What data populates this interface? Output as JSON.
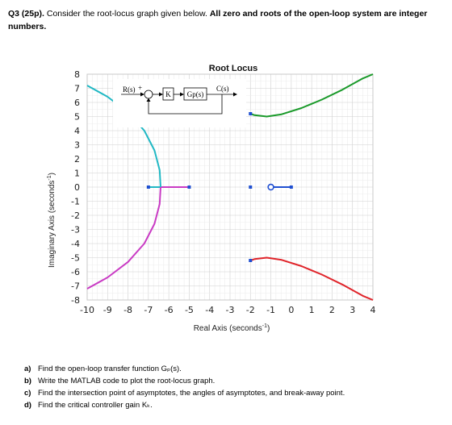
{
  "question": {
    "number": "Q3 (25p).",
    "intro": "Consider the root-locus graph given below.",
    "emphasis": "All zero and roots of the open-loop system are integer numbers."
  },
  "plot": {
    "title": "Root Locus",
    "y_axis_label": "Imaginary Axis (seconds",
    "x_axis_label": "Real Axis (seconds",
    "axis_unit_exponent": "-1",
    "axis_label_close": ")",
    "y_ticks": [
      "8",
      "7",
      "6",
      "5",
      "4",
      "3",
      "2",
      "1",
      "0",
      "-1",
      "-2",
      "-3",
      "-4",
      "-5",
      "-6",
      "-7",
      "-8"
    ],
    "x_ticks": [
      "-10",
      "-9",
      "-8",
      "-7",
      "-6",
      "-5",
      "-4",
      "-3",
      "-2",
      "-1",
      "0",
      "1",
      "2",
      "3",
      "4"
    ]
  },
  "block_diagram": {
    "input_label": "R(s)",
    "sum_sign": "+",
    "gain_label": "K",
    "plant_label": "Gp(s)",
    "output_label": "C(s)"
  },
  "chart_data": {
    "type": "line",
    "title": "Root Locus",
    "xlabel": "Real Axis (seconds^-1)",
    "ylabel": "Imaginary Axis (seconds^-1)",
    "xlim": [
      -10,
      4
    ],
    "ylim": [
      -8,
      8
    ],
    "grid": true,
    "poles": [
      -7,
      -5,
      -2,
      0
    ],
    "zeros": [
      -1
    ],
    "colors": {
      "cyan": "#21b8c4",
      "magenta": "#c93bc4",
      "green": "#1a9a2a",
      "red": "#e0242a",
      "blue": "#1f4fd1"
    },
    "series": [
      {
        "color": "cyan",
        "x": [
          -7,
          -6.4
        ],
        "y": [
          0,
          0
        ]
      },
      {
        "color": "magenta",
        "x": [
          -5,
          -6.4
        ],
        "y": [
          0,
          0
        ]
      },
      {
        "color": "cyan",
        "x": [
          -6.4,
          -6.45,
          -6.7,
          -7.2,
          -8.0,
          -9.0,
          -10.0
        ],
        "y": [
          0,
          1.2,
          2.6,
          4.0,
          5.3,
          6.4,
          7.2
        ]
      },
      {
        "color": "magenta",
        "x": [
          -6.4,
          -6.45,
          -6.7,
          -7.2,
          -8.0,
          -9.0,
          -10.0
        ],
        "y": [
          0,
          -1.2,
          -2.6,
          -4.0,
          -5.3,
          -6.4,
          -7.2
        ]
      },
      {
        "color": "blue",
        "x": [
          0,
          -1
        ],
        "y": [
          0,
          0
        ]
      },
      {
        "color": "green",
        "x": [
          -2,
          -1.8,
          -1.2,
          -0.5,
          0.5,
          1.5,
          2.5,
          3.5,
          4.0
        ],
        "y": [
          5.2,
          5.1,
          5.0,
          5.15,
          5.6,
          6.2,
          6.9,
          7.7,
          8.0
        ]
      },
      {
        "color": "red",
        "x": [
          -2,
          -1.8,
          -1.2,
          -0.5,
          0.5,
          1.5,
          2.5,
          3.5,
          4.0
        ],
        "y": [
          -5.2,
          -5.1,
          -5.0,
          -5.15,
          -5.6,
          -6.2,
          -6.9,
          -7.7,
          -8.0
        ]
      }
    ]
  },
  "parts": [
    {
      "letter": "a)",
      "text": "Find the open-loop transfer function Gₚ(s)."
    },
    {
      "letter": "b)",
      "text": "Write the MATLAB code to plot the root-locus graph."
    },
    {
      "letter": "c)",
      "text": "Find the intersection point of asymptotes, the angles of asymptotes, and break-away point."
    },
    {
      "letter": "d)",
      "text": "Find the critical controller gain Kₖ."
    }
  ]
}
